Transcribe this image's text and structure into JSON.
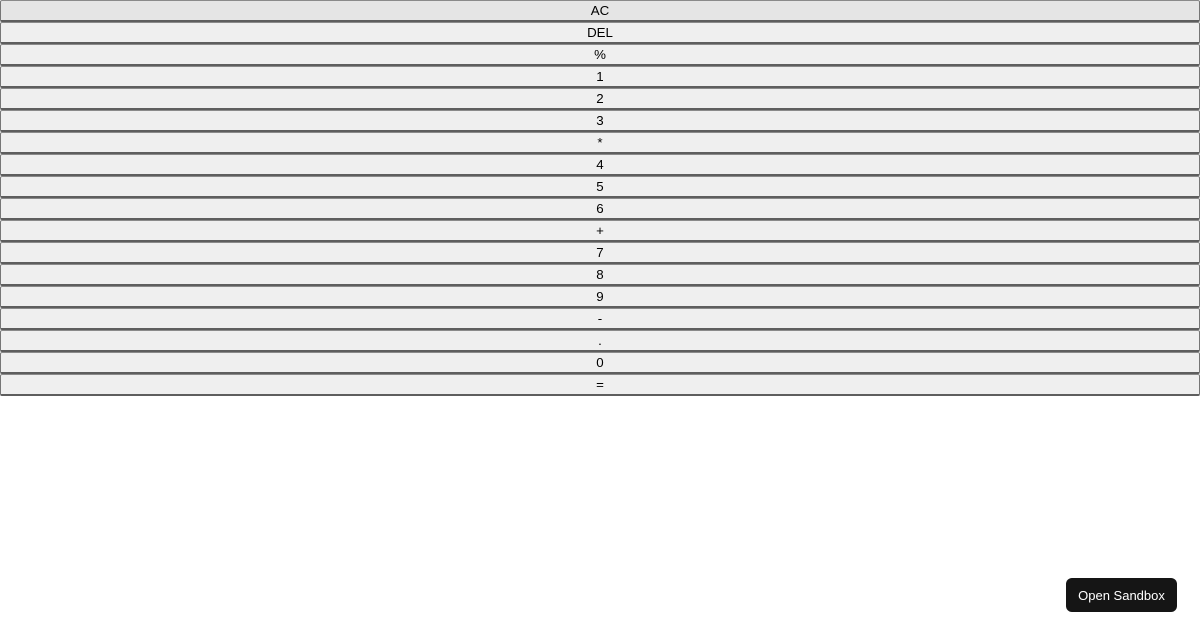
{
  "calculator": {
    "keys": [
      "AC",
      "DEL",
      "%",
      "1",
      "2",
      "3",
      "*",
      "4",
      "5",
      "6",
      "+",
      "7",
      "8",
      "9",
      "-",
      ".",
      "0",
      "="
    ]
  },
  "sandbox_button": {
    "label": "Open Sandbox"
  }
}
